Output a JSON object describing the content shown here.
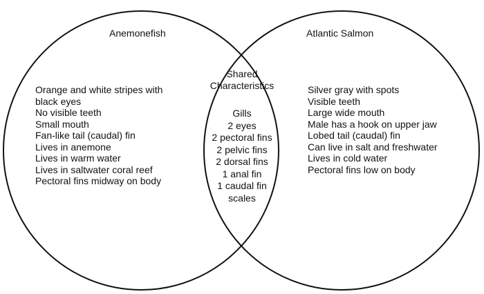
{
  "diagram": {
    "type": "venn",
    "left_set": {
      "title": "Anemonefish",
      "items": [
        "Orange and white stripes with black eyes",
        "No visible teeth",
        "Small mouth",
        "Fan-like tail (caudal) fin",
        "Lives in anemone",
        "Lives in warm water",
        "Lives in saltwater coral reef",
        "Pectoral fins midway on body"
      ]
    },
    "right_set": {
      "title": "Atlantic Salmon",
      "items": [
        "Silver gray with spots",
        "Visible teeth",
        "Large wide mouth",
        "Male has a hook on upper jaw",
        "Lobed tail (caudal) fin",
        "Can live in salt and freshwater",
        "Lives in cold water",
        "Pectoral fins low on body"
      ]
    },
    "intersection": {
      "title": "Shared Characteristics",
      "items": [
        "Gills",
        "2 eyes",
        "2 pectoral fins",
        "2 pelvic fins",
        "2 dorsal fins",
        "1 anal fin",
        "1 caudal fin",
        "scales"
      ]
    },
    "stroke_color": "#111111",
    "background_color": "#ffffff"
  }
}
